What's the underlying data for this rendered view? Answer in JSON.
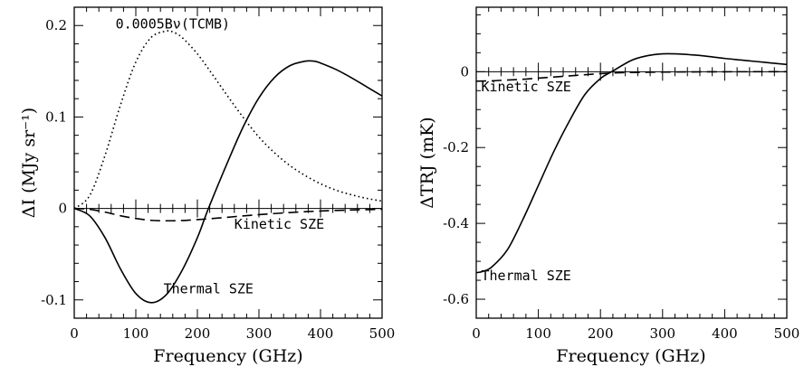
{
  "chart_data": [
    {
      "type": "line",
      "xlabel": "Frequency (GHz)",
      "ylabel": "ΔI (MJy sr⁻¹)",
      "xlim": [
        0,
        500
      ],
      "ylim": [
        -0.12,
        0.22
      ],
      "x_ticks": [
        "0",
        "100",
        "200",
        "300",
        "400",
        "500"
      ],
      "x_tick_values": [
        0,
        100,
        200,
        300,
        400,
        500
      ],
      "y_ticks": [
        "-0.1",
        "0",
        "0.1",
        "0.2"
      ],
      "y_tick_values": [
        -0.1,
        0,
        0.1,
        0.2
      ],
      "grid": false,
      "series": [
        {
          "name": "0.0005Bν(TCMB)",
          "style": "dotted",
          "x": [
            0,
            25,
            50,
            75,
            100,
            125,
            150,
            160,
            175,
            200,
            225,
            250,
            275,
            300,
            325,
            350,
            375,
            400,
            425,
            450,
            475,
            500
          ],
          "y": [
            0,
            0.014,
            0.058,
            0.113,
            0.16,
            0.187,
            0.194,
            0.193,
            0.187,
            0.169,
            0.146,
            0.122,
            0.099,
            0.078,
            0.061,
            0.047,
            0.036,
            0.027,
            0.02,
            0.015,
            0.011,
            0.008
          ]
        },
        {
          "name": "Thermal SZE",
          "style": "solid",
          "x": [
            0,
            25,
            50,
            75,
            100,
            125,
            150,
            175,
            200,
            218,
            250,
            275,
            300,
            325,
            350,
            375,
            390,
            400,
            425,
            450,
            475,
            500
          ],
          "y": [
            0,
            -0.008,
            -0.032,
            -0.066,
            -0.093,
            -0.103,
            -0.094,
            -0.068,
            -0.032,
            0,
            0.052,
            0.09,
            0.121,
            0.143,
            0.156,
            0.161,
            0.161,
            0.159,
            0.152,
            0.143,
            0.133,
            0.123
          ]
        },
        {
          "name": "Kinetic SZE",
          "style": "dashed",
          "x": [
            0,
            25,
            50,
            75,
            100,
            125,
            150,
            175,
            200,
            225,
            250,
            275,
            300,
            325,
            350,
            375,
            400,
            425,
            450,
            475,
            500
          ],
          "y": [
            0,
            -0.001,
            -0.004,
            -0.008,
            -0.011,
            -0.013,
            -0.0135,
            -0.0132,
            -0.0122,
            -0.011,
            -0.0096,
            -0.0081,
            -0.0068,
            -0.0056,
            -0.0045,
            -0.0036,
            -0.0028,
            -0.0022,
            -0.0017,
            -0.0013,
            -0.001
          ]
        }
      ],
      "annotations": [
        {
          "text": "0.0005Bν(TCMB)",
          "x": 160,
          "y": 0.197
        },
        {
          "text": "Kinetic SZE",
          "x": 260,
          "y": -0.022
        },
        {
          "text": "Thermal SZE",
          "x": 145,
          "y": -0.093
        }
      ]
    },
    {
      "type": "line",
      "xlabel": "Frequency (GHz)",
      "ylabel": "ΔTRJ (mK)",
      "xlim": [
        0,
        500
      ],
      "ylim": [
        -0.65,
        0.17
      ],
      "x_ticks": [
        "0",
        "100",
        "200",
        "300",
        "400",
        "500"
      ],
      "x_tick_values": [
        0,
        100,
        200,
        300,
        400,
        500
      ],
      "y_ticks": [
        "-0.6",
        "-0.4",
        "-0.2",
        "0"
      ],
      "y_tick_values": [
        -0.6,
        -0.4,
        -0.2,
        0
      ],
      "grid": false,
      "series": [
        {
          "name": "Thermal SZE",
          "style": "solid",
          "x": [
            0,
            10,
            25,
            50,
            75,
            100,
            125,
            150,
            175,
            200,
            218,
            250,
            275,
            300,
            320,
            350,
            375,
            400,
            425,
            450,
            475,
            500
          ],
          "y": [
            -0.53,
            -0.527,
            -0.515,
            -0.47,
            -0.39,
            -0.3,
            -0.21,
            -0.13,
            -0.06,
            -0.018,
            0,
            0.03,
            0.042,
            0.047,
            0.047,
            0.044,
            0.04,
            0.035,
            0.031,
            0.027,
            0.023,
            0.019
          ]
        },
        {
          "name": "Kinetic SZE",
          "style": "dashed",
          "x": [
            0,
            25,
            50,
            75,
            100,
            125,
            150,
            175,
            200,
            225,
            250,
            300,
            350,
            400,
            450,
            500
          ],
          "y": [
            -0.025,
            -0.024,
            -0.022,
            -0.02,
            -0.017,
            -0.014,
            -0.011,
            -0.008,
            -0.005,
            -0.003,
            -0.002,
            -0.001,
            -0.0005,
            -0.0002,
            -0.0001,
            0
          ]
        }
      ],
      "annotations": [
        {
          "text": "Kinetic SZE",
          "x": 8,
          "y": -0.052
        },
        {
          "text": "Thermal SZE",
          "x": 8,
          "y": -0.55
        }
      ]
    }
  ]
}
